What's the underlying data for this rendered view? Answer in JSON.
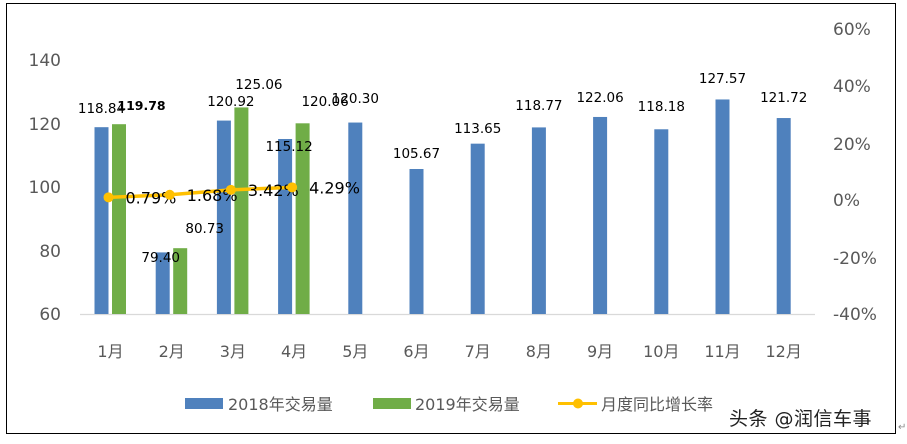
{
  "chart_data": {
    "type": "bar",
    "title": "",
    "xlabel": "",
    "ylabel": "",
    "categories": [
      "1月",
      "2月",
      "3月",
      "4月",
      "5月",
      "6月",
      "7月",
      "8月",
      "9月",
      "10月",
      "11月",
      "12月"
    ],
    "series": [
      {
        "name": "2018年交易量",
        "type": "bar",
        "axis": "left",
        "color": "#4F81BD",
        "values": [
          118.84,
          79.4,
          120.92,
          115.12,
          120.3,
          105.67,
          113.65,
          118.77,
          122.06,
          118.18,
          127.57,
          121.72
        ]
      },
      {
        "name": "2019年交易量",
        "type": "bar",
        "axis": "left",
        "color": "#70AD47",
        "values": [
          119.78,
          80.73,
          125.06,
          120.06,
          null,
          null,
          null,
          null,
          null,
          null,
          null,
          null
        ]
      },
      {
        "name": "月度同比增长率",
        "type": "line",
        "axis": "right",
        "color": "#FFC000",
        "values": [
          0.79,
          1.68,
          3.42,
          4.29,
          null,
          null,
          null,
          null,
          null,
          null,
          null,
          null
        ],
        "labels": [
          "0.79%",
          "1.68%",
          "3.42%",
          "4.29%"
        ]
      }
    ],
    "y_left": {
      "range": [
        60,
        140
      ],
      "ticks": [
        "60",
        "80",
        "100",
        "120",
        "140"
      ]
    },
    "y_right": {
      "range": [
        -40,
        60
      ],
      "ticks": [
        "-40%",
        "-20%",
        "0%",
        "20%",
        "40%",
        "60%"
      ]
    },
    "grid": false,
    "legend_position": "bottom"
  },
  "labels": {
    "s2018": [
      "118.84",
      "79.40",
      "120.92",
      "115.12",
      "120.30",
      "105.67",
      "113.65",
      "118.77",
      "122.06",
      "118.18",
      "127.57",
      "121.72"
    ],
    "s2019": [
      "119.78",
      "80.73",
      "125.06",
      "120.06"
    ]
  },
  "legend": {
    "item1": "2018年交易量",
    "item2": "2019年交易量",
    "item3": "月度同比增长率"
  },
  "watermark": "头条 @润信车事"
}
